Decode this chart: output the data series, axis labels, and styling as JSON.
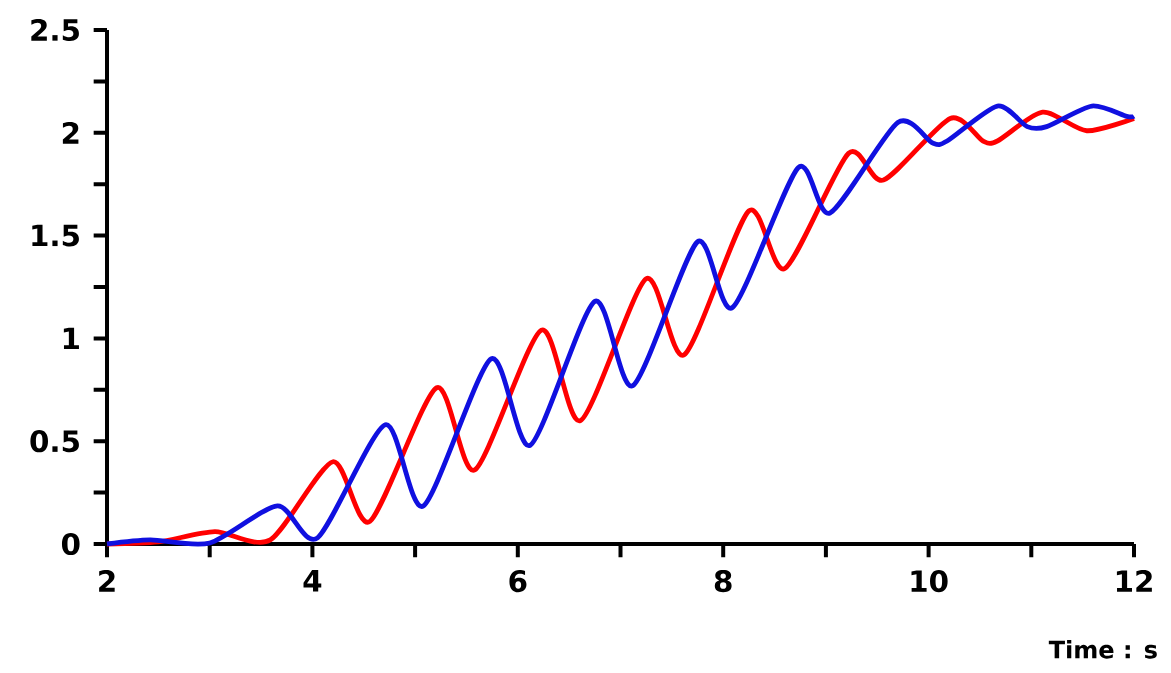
{
  "chart_data": {
    "type": "line",
    "xlabel": "Time : s",
    "xlim": [
      2,
      12
    ],
    "ylim": [
      0,
      2.5
    ],
    "xticks": [
      2,
      {
        "value": 3,
        "label": null
      },
      4,
      {
        "value": 5,
        "label": null
      },
      6,
      {
        "value": 7,
        "label": null
      },
      8,
      {
        "value": 9,
        "label": null
      },
      10,
      {
        "value": 11,
        "label": null
      },
      12
    ],
    "yticks": [
      0,
      {
        "value": 0.25,
        "label": null
      },
      0.5,
      {
        "value": 0.75,
        "label": null
      },
      1,
      {
        "value": 1.25,
        "label": null
      },
      1.5,
      {
        "value": 1.75,
        "label": null
      },
      2,
      {
        "value": 2.25,
        "label": null
      },
      2.5
    ],
    "line_style": "solid",
    "series": [
      {
        "color": "#ff0000",
        "x": [
          2,
          2.5,
          3.05,
          3.59,
          4.2,
          4.56,
          5.21,
          5.58,
          6.23,
          6.61,
          7.25,
          7.62,
          8.25,
          8.6,
          9.22,
          9.56,
          10.21,
          10.53,
          10.67,
          11.11,
          11.54,
          12
        ],
        "values": [
          0,
          0.01,
          0.06,
          0.02,
          0.4,
          0.11,
          0.76,
          0.36,
          1.04,
          0.6,
          1.29,
          0.92,
          1.62,
          1.34,
          1.9,
          1.77,
          2.07,
          1.96,
          1.96,
          2.1,
          2.01,
          2.07
        ]
      },
      {
        "color": "#1010e0",
        "x": [
          2,
          2.42,
          3.0,
          3.66,
          4.05,
          4.71,
          5.08,
          5.74,
          6.12,
          6.75,
          7.12,
          7.75,
          8.09,
          8.73,
          9.04,
          9.7,
          10.04,
          10.18,
          10.67,
          10.96,
          11.15,
          11.59,
          11.93,
          12
        ],
        "values": [
          0,
          0.02,
          0.005,
          0.185,
          0.03,
          0.58,
          0.185,
          0.9,
          0.48,
          1.18,
          0.77,
          1.47,
          1.15,
          1.83,
          1.61,
          2.05,
          1.95,
          1.96,
          2.13,
          2.03,
          2.03,
          2.13,
          2.08,
          2.08
        ]
      }
    ]
  }
}
